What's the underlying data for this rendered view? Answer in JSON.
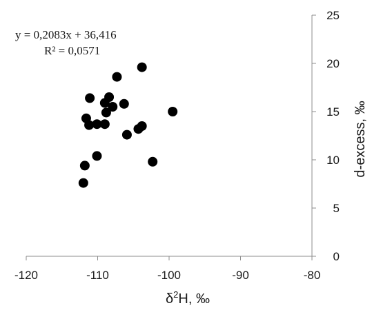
{
  "chart_data": {
    "type": "scatter",
    "title": "",
    "xlabel": "δ2H, ‰",
    "xlabel_main": "δ",
    "xlabel_sup": "2",
    "xlabel_rest": "H, ‰",
    "ylabel": "d-excess, ‰",
    "xlim": [
      -120,
      -80
    ],
    "ylim": [
      0,
      25
    ],
    "x_ticks": [
      -120,
      -110,
      -100,
      -90,
      -80
    ],
    "x_tick_labels": [
      "-120",
      "-110",
      "-100",
      "-90",
      "-80"
    ],
    "y_ticks": [
      0,
      5,
      10,
      15,
      20,
      25
    ],
    "y_tick_labels": [
      "0",
      "5",
      "10",
      "15",
      "20",
      "25"
    ],
    "y_axis_side": "right",
    "grid": false,
    "legend": "none",
    "marker_color": "#000000",
    "trendline_equation": "y = 0,2083x + 36,416",
    "r_squared": "R² = 0,0571",
    "points": [
      {
        "x": -112.0,
        "y": 7.6
      },
      {
        "x": -111.8,
        "y": 9.4
      },
      {
        "x": -111.6,
        "y": 14.3
      },
      {
        "x": -111.1,
        "y": 16.4
      },
      {
        "x": -111.2,
        "y": 13.6
      },
      {
        "x": -110.1,
        "y": 13.7
      },
      {
        "x": -110.1,
        "y": 10.4
      },
      {
        "x": -109.0,
        "y": 13.7
      },
      {
        "x": -109.0,
        "y": 15.9
      },
      {
        "x": -108.8,
        "y": 14.9
      },
      {
        "x": -108.4,
        "y": 16.5
      },
      {
        "x": -107.9,
        "y": 15.5
      },
      {
        "x": -107.3,
        "y": 18.6
      },
      {
        "x": -106.3,
        "y": 15.8
      },
      {
        "x": -105.9,
        "y": 12.6
      },
      {
        "x": -104.3,
        "y": 13.2
      },
      {
        "x": -103.8,
        "y": 13.5
      },
      {
        "x": -103.8,
        "y": 19.6
      },
      {
        "x": -102.3,
        "y": 9.8
      },
      {
        "x": -99.5,
        "y": 15.0
      }
    ]
  }
}
